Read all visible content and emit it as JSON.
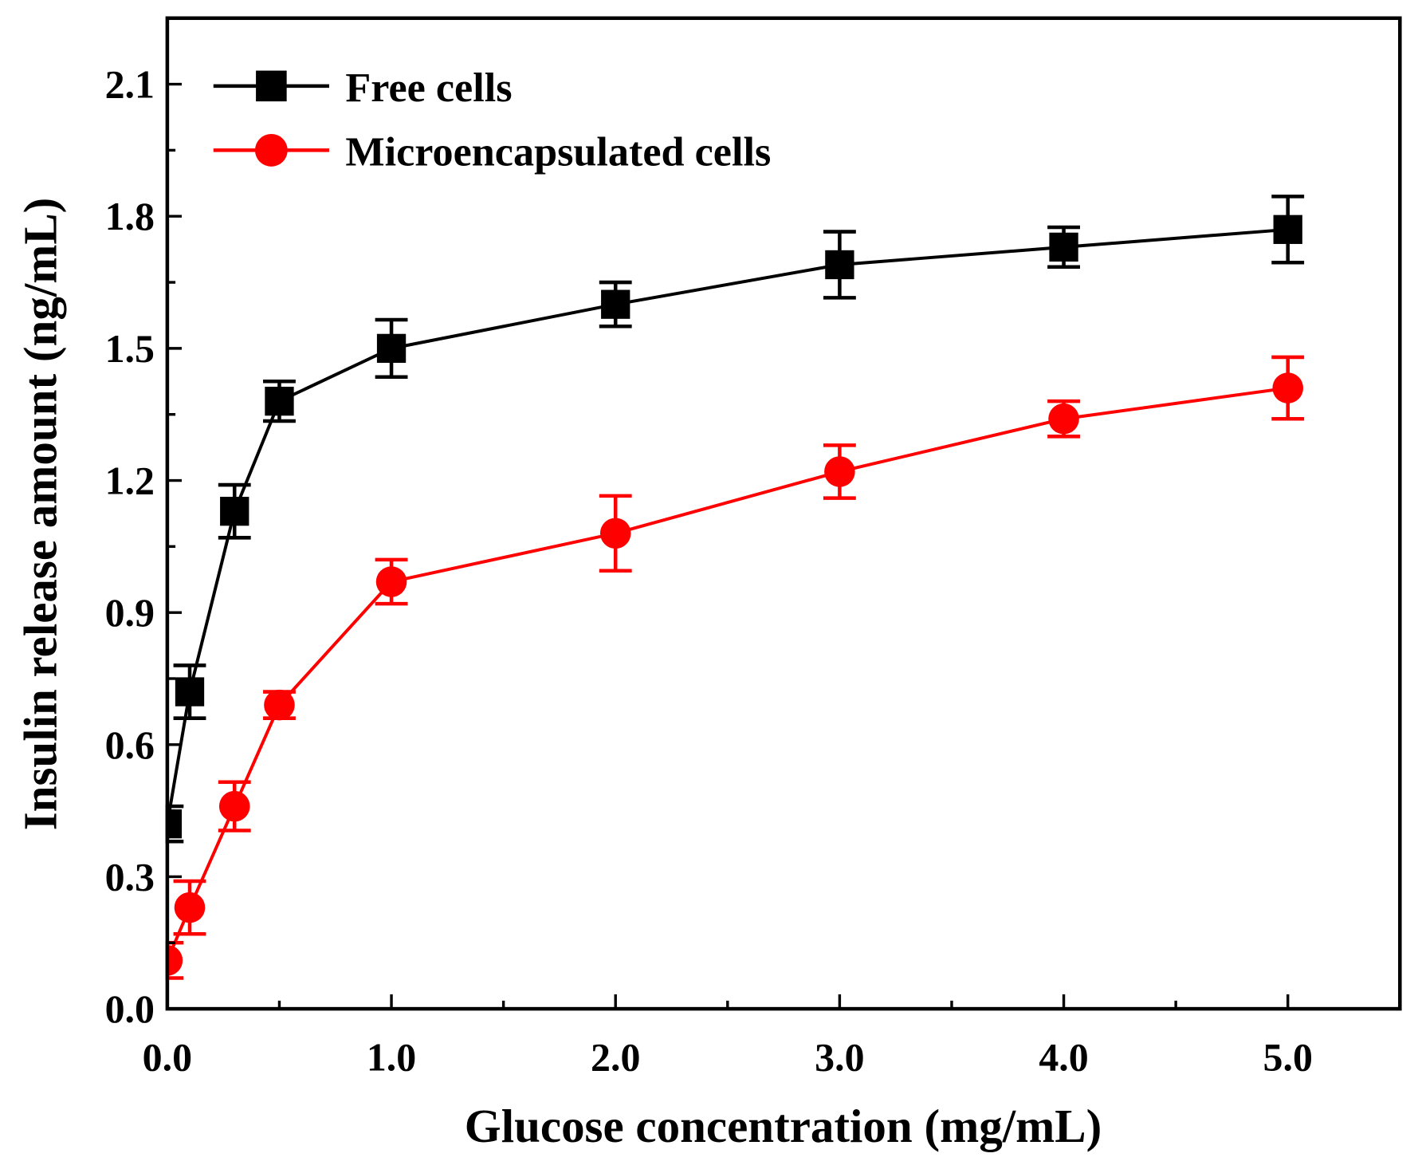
{
  "chart_data": {
    "type": "line",
    "title": "",
    "xlabel": "Glucose concentration (mg/mL)",
    "ylabel": "Insulin release amount (ng/mL)",
    "xlim": [
      0,
      5.5
    ],
    "ylim": [
      0,
      2.25
    ],
    "xticks": [
      0,
      1,
      2,
      3,
      4,
      5
    ],
    "xtick_labels": [
      "0.0",
      "1.0",
      "2.0",
      "3.0",
      "4.0",
      "5.0"
    ],
    "yticks": [
      0,
      0.3,
      0.6,
      0.9,
      1.2,
      1.5,
      1.8,
      2.1
    ],
    "ytick_labels": [
      "0.0",
      "0.3",
      "0.6",
      "0.9",
      "1.2",
      "1.5",
      "1.8",
      "2.1"
    ],
    "grid": false,
    "legend_position": "top-left",
    "x": [
      0,
      0.1,
      0.3,
      0.5,
      1,
      2,
      3,
      4,
      5
    ],
    "series": [
      {
        "name": "Free cells",
        "color": "#000000",
        "marker": "square",
        "values": [
          0.42,
          0.72,
          1.13,
          1.38,
          1.5,
          1.6,
          1.69,
          1.73,
          1.77
        ],
        "errors": [
          0.04,
          0.06,
          0.06,
          0.045,
          0.065,
          0.05,
          0.075,
          0.045,
          0.075
        ]
      },
      {
        "name": "Microencapsulated cells",
        "color": "#ff0000",
        "marker": "circle",
        "values": [
          0.11,
          0.23,
          0.46,
          0.69,
          0.97,
          1.08,
          1.22,
          1.34,
          1.41
        ],
        "errors": [
          0.04,
          0.06,
          0.055,
          0.03,
          0.05,
          0.085,
          0.06,
          0.04,
          0.07
        ]
      }
    ]
  }
}
